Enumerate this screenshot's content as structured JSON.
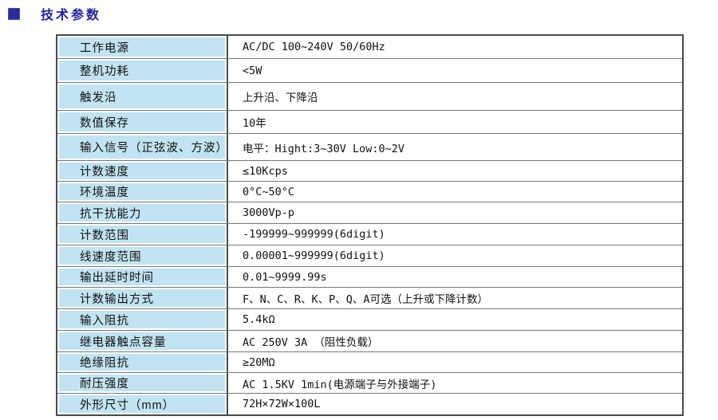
{
  "header": {
    "title": "技术参数"
  },
  "colors": {
    "accent": "#2a2a9e",
    "label_cell_bg": "#c2e3f1",
    "grid_line": "#757575"
  },
  "table": {
    "rows": [
      {
        "label": "工作电源",
        "value": "AC/DC 100~240V  50/60Hz"
      },
      {
        "label": "整机功耗",
        "value": "<5W"
      },
      {
        "label": "触发沿",
        "value": "上升沿、下降沿"
      },
      {
        "label": "数值保存",
        "value": "10年"
      },
      {
        "label": "输入信号（正弦波、方波）",
        "value": "电平：Hight:3~30V   Low:0~2V"
      },
      {
        "label": "计数速度",
        "value": "≤10Kcps"
      },
      {
        "label": "环境温度",
        "value": "0°C~50°C"
      },
      {
        "label": "抗干扰能力",
        "value": "3000Vp-p"
      },
      {
        "label": "计数范围",
        "value": "-199999~999999(6digit)"
      },
      {
        "label": "线速度范围",
        "value": "0.00001~999999(6digit)"
      },
      {
        "label": "输出延时时间",
        "value": "0.01~9999.99s"
      },
      {
        "label": "计数输出方式",
        "value": "F、N、C、R、K、P、Q、A可选（上升或下降计数）"
      },
      {
        "label": "输入阻抗",
        "value": "5.4kΩ"
      },
      {
        "label": "继电器触点容量",
        "value": "AC 250V 3A （阻性负载）"
      },
      {
        "label": "绝缘阻抗",
        "value": "≥20MΩ"
      },
      {
        "label": "耐压强度",
        "value": "AC  1.5KV 1min(电源端子与外接端子)"
      },
      {
        "label": "外形尺寸（mm）",
        "value": "72H×72W×100L"
      }
    ]
  }
}
